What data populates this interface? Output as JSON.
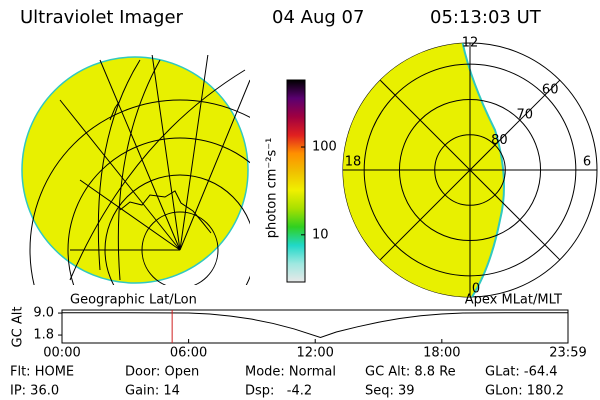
{
  "header": {
    "title": "Ultraviolet Imager",
    "date": "04 Aug 07",
    "time": "05:13:03 UT"
  },
  "colorbar": {
    "label": "photon cm⁻²s⁻¹",
    "lim": [
      2.9,
      580
    ],
    "log": true,
    "ticks": [
      100,
      10
    ],
    "colors": [
      "#e8e8e8",
      "#9ee8e0",
      "#20d8c8",
      "#30d020",
      "#a8e000",
      "#f0f000",
      "#f0c000",
      "#ff9000",
      "#e02020",
      "#a00040",
      "#5a0070",
      "#000000"
    ]
  },
  "left_panel": {
    "label": "Geographic Lat/Lon"
  },
  "right_panel": {
    "label": "Apex MLat/MLT",
    "lat_rings": [
      80,
      70,
      60
    ],
    "lat_lim": [
      90,
      54
    ],
    "mlt_ticks": [
      12,
      18,
      6,
      0
    ]
  },
  "chart_data": {
    "type": "line",
    "y_label": "GC Alt",
    "x": [
      0,
      3,
      6,
      7,
      8,
      9,
      10,
      11,
      12.25,
      13,
      14,
      15,
      16,
      17,
      18,
      19,
      21,
      23.98
    ],
    "series": [
      {
        "name": "GC Alt",
        "color": "#000000",
        "values": [
          9.1,
          9.1,
          9.0,
          8.7,
          8.0,
          7.0,
          5.6,
          3.8,
          1.0,
          2.8,
          4.5,
          6.0,
          7.2,
          8.1,
          8.7,
          9.0,
          9.1,
          9.1
        ]
      }
    ],
    "marker_x": 5.22,
    "marker_color": "#d02020",
    "xlim": [
      0,
      23.98
    ],
    "ylim": [
      -0.8,
      10
    ],
    "xticks": [
      {
        "value": 0,
        "label": "00:00"
      },
      {
        "value": 6,
        "label": "06:00"
      },
      {
        "value": 12,
        "label": "12:00"
      },
      {
        "value": 18,
        "label": "18:00"
      },
      {
        "value": 23.98,
        "label": "23:59"
      }
    ],
    "yticks": [
      {
        "value": 9,
        "label": "9.0"
      },
      {
        "value": 1.8,
        "label": "1.8"
      }
    ]
  },
  "info": [
    [
      "Flt: HOME",
      "Door: Open",
      "Mode: Normal",
      "GC Alt: 8.8 Re",
      "GLat: -64.4"
    ],
    [
      "IP: 36.0",
      "Gain: 14",
      "Dsp:   -4.2",
      "Seq: 39",
      "GLon: 180.2"
    ]
  ]
}
